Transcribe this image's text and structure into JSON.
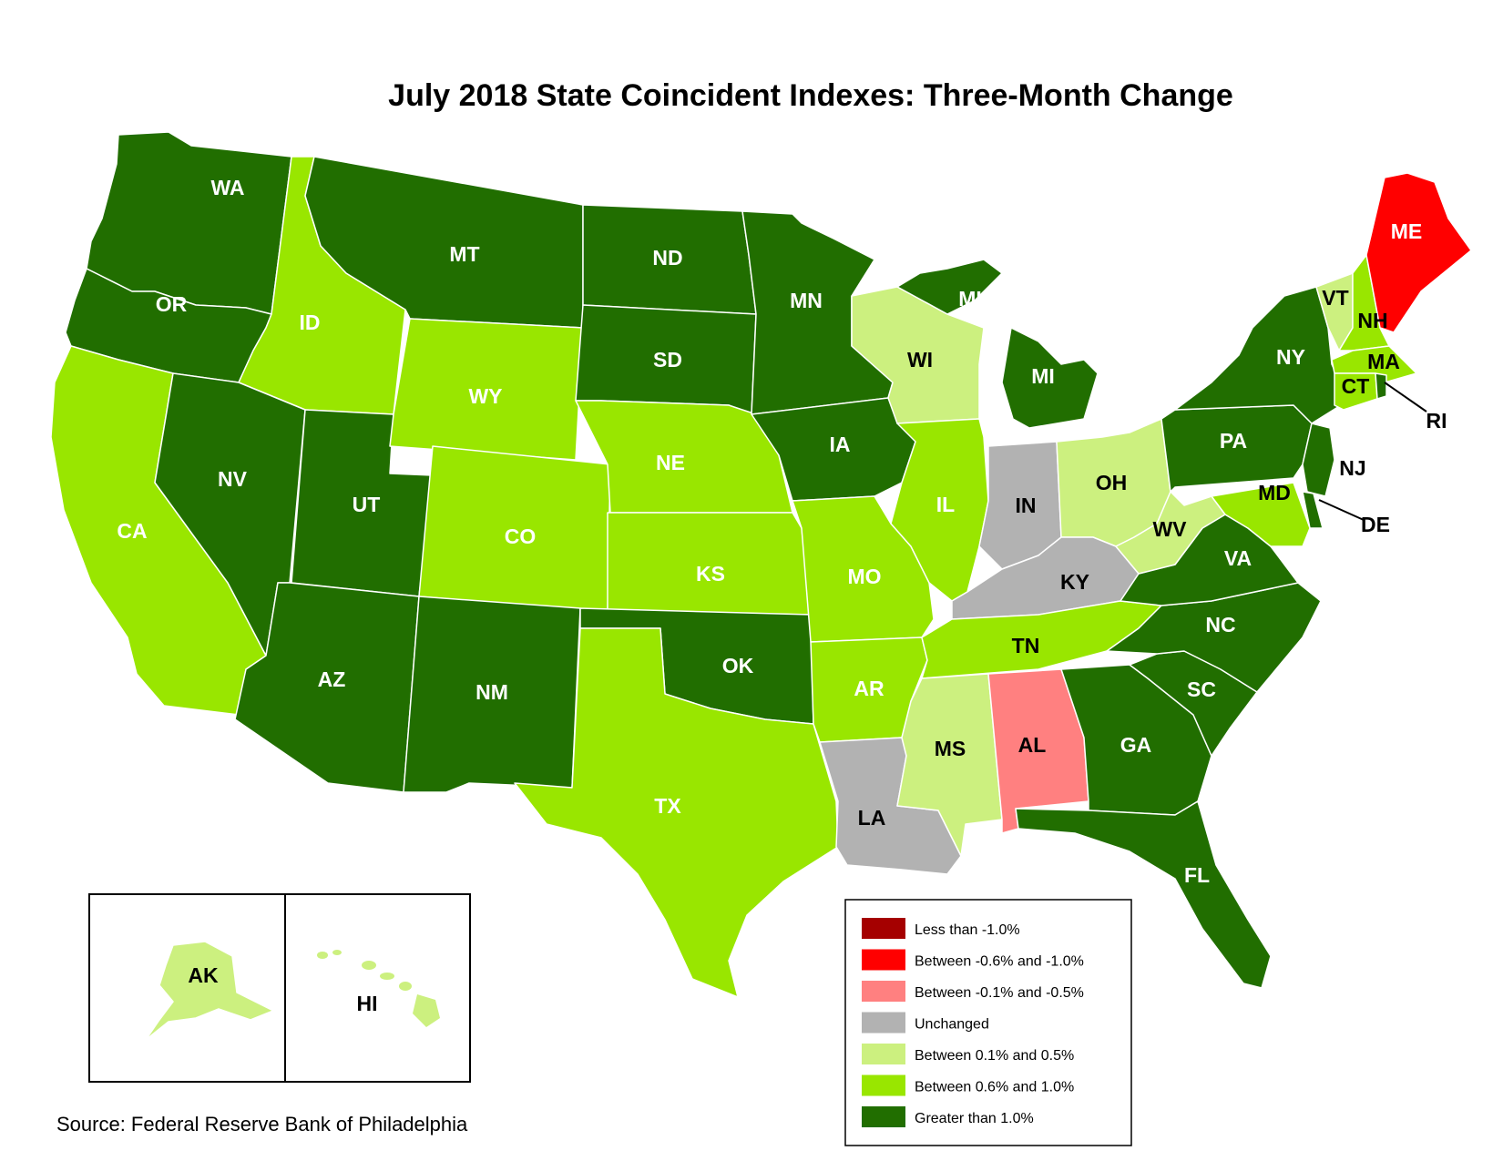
{
  "title": "July 2018 State Coincident Indexes: Three-Month Change",
  "source": "Source: Federal Reserve Bank of Philadelphia",
  "legend": [
    {
      "key": "lt_-1.0",
      "label": "Less than -1.0%",
      "color": "#A50000"
    },
    {
      "key": "-0.6_-1.0",
      "label": "Between -0.6% and -1.0%",
      "color": "#FF0000"
    },
    {
      "key": "-0.1_-0.5",
      "label": "Between -0.1% and -0.5%",
      "color": "#FF8080"
    },
    {
      "key": "unchanged",
      "label": "Unchanged",
      "color": "#B2B2B2"
    },
    {
      "key": "0.1_0.5",
      "label": "Between 0.1% and 0.5%",
      "color": "#CCF07F"
    },
    {
      "key": "0.6_1.0",
      "label": "Between 0.6% and 1.0%",
      "color": "#99E600"
    },
    {
      "key": "gt_1.0",
      "label": "Greater than 1.0%",
      "color": "#216E00"
    }
  ],
  "states": {
    "WA": "gt_1.0",
    "OR": "gt_1.0",
    "CA": "0.6_1.0",
    "ID": "0.6_1.0",
    "NV": "gt_1.0",
    "UT": "gt_1.0",
    "AZ": "gt_1.0",
    "MT": "gt_1.0",
    "WY": "0.6_1.0",
    "CO": "0.6_1.0",
    "NM": "gt_1.0",
    "ND": "gt_1.0",
    "SD": "gt_1.0",
    "NE": "0.6_1.0",
    "KS": "0.6_1.0",
    "OK": "gt_1.0",
    "TX": "0.6_1.0",
    "MN": "gt_1.0",
    "IA": "gt_1.0",
    "MO": "0.6_1.0",
    "AR": "0.6_1.0",
    "LA": "unchanged",
    "WI": "0.1_0.5",
    "IL": "0.6_1.0",
    "MI": "gt_1.0",
    "IN": "unchanged",
    "OH": "0.1_0.5",
    "KY": "unchanged",
    "TN": "0.6_1.0",
    "MS": "0.1_0.5",
    "AL": "-0.1_-0.5",
    "GA": "gt_1.0",
    "FL": "gt_1.0",
    "SC": "gt_1.0",
    "NC": "gt_1.0",
    "VA": "gt_1.0",
    "WV": "0.1_0.5",
    "PA": "gt_1.0",
    "NY": "gt_1.0",
    "VT": "0.1_0.5",
    "NH": "0.6_1.0",
    "ME": "-0.6_-1.0",
    "MA": "0.6_1.0",
    "CT": "0.6_1.0",
    "RI": "gt_1.0",
    "NJ": "gt_1.0",
    "DE": "gt_1.0",
    "MD": "0.6_1.0",
    "AK": "0.1_0.5",
    "HI": "0.1_0.5"
  },
  "labels": {
    "WA": "WA",
    "OR": "OR",
    "CA": "CA",
    "ID": "ID",
    "NV": "NV",
    "UT": "UT",
    "AZ": "AZ",
    "MT": "MT",
    "WY": "WY",
    "CO": "CO",
    "NM": "NM",
    "ND": "ND",
    "SD": "SD",
    "NE": "NE",
    "KS": "KS",
    "OK": "OK",
    "TX": "TX",
    "MN": "MN",
    "IA": "IA",
    "MO": "MO",
    "AR": "AR",
    "LA": "LA",
    "WI": "WI",
    "IL": "IL",
    "MI": "MI",
    "MI_UP": "MI",
    "IN": "IN",
    "OH": "OH",
    "KY": "KY",
    "TN": "TN",
    "MS": "MS",
    "AL": "AL",
    "GA": "GA",
    "FL": "FL",
    "SC": "SC",
    "NC": "NC",
    "VA": "VA",
    "WV": "WV",
    "PA": "PA",
    "NY": "NY",
    "VT": "VT",
    "NH": "NH",
    "ME": "ME",
    "MA": "MA",
    "CT": "CT",
    "RI": "RI",
    "NJ": "NJ",
    "DE": "DE",
    "MD": "MD",
    "AK": "AK",
    "HI": "HI"
  }
}
